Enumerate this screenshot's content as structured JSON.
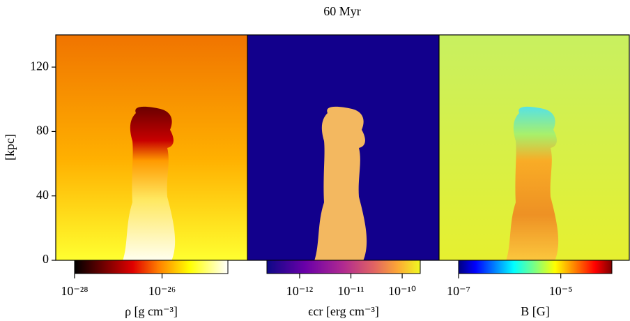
{
  "chart_data": {
    "type": "image",
    "title": "60 Myr",
    "ylabel": "[kpc]",
    "ylim": [
      0,
      140
    ],
    "yticks": [
      0,
      40,
      80,
      120
    ],
    "panels": [
      {
        "label": "ρ [g cm⁻³]",
        "colormap": "hot",
        "log": true,
        "clim": [
          1e-28,
          3.2e-25
        ],
        "cticks": [
          {
            "value": 1e-28,
            "label": "10⁻²⁸"
          },
          {
            "value": 1e-26,
            "label": "10⁻²⁶"
          }
        ]
      },
      {
        "label": "ϵcr [erg cm⁻³]",
        "colormap": "plasma",
        "log": true,
        "clim": [
          2.3e-13,
          2.25e-10
        ],
        "cticks": [
          {
            "value": 1e-12,
            "label": "10⁻¹²"
          },
          {
            "value": 1e-11,
            "label": "10⁻¹¹"
          },
          {
            "value": 1e-10,
            "label": "10⁻¹⁰"
          }
        ]
      },
      {
        "label": "B [G]",
        "colormap": "jet",
        "log": true,
        "clim": [
          1e-07,
          0.0001
        ],
        "cticks": [
          {
            "value": 1e-07,
            "label": "10⁻⁷"
          },
          {
            "value": 1e-05,
            "label": "10⁻⁵"
          }
        ]
      }
    ]
  }
}
